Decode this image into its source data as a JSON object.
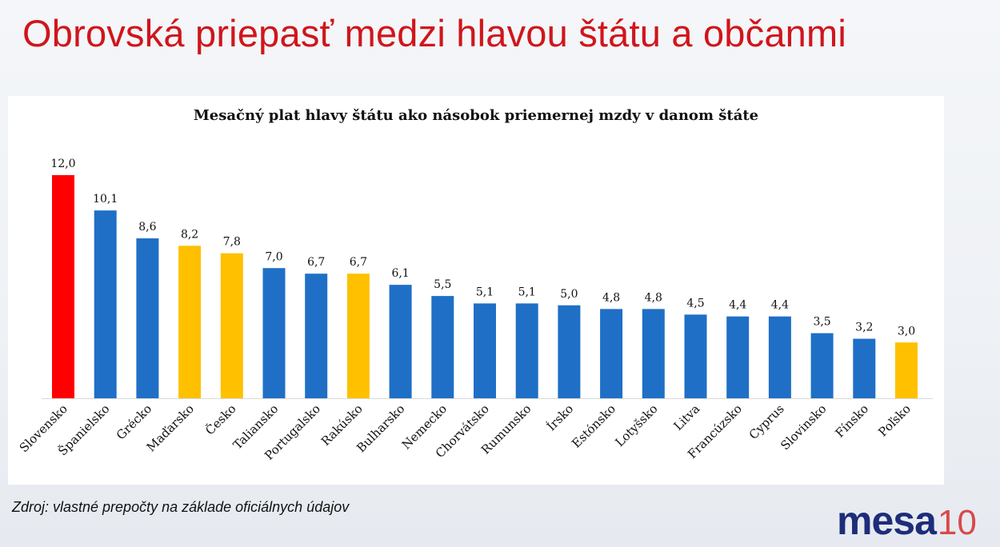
{
  "title": "Obrovská priepasť medzi hlavou štátu a občanmi",
  "source": "Zdroj: vlastné prepočty na základe oficiálnych údajov",
  "logo": {
    "text": "mesa",
    "suffix": "10",
    "color": "#1e2d7a"
  },
  "chart_data": {
    "type": "bar",
    "title": "Mesačný plat hlavy štátu ako násobok priemernej mzdy v danom štáte",
    "categories": [
      "Slovensko",
      "Španielsko",
      "Grécko",
      "Maďarsko",
      "Česko",
      "Taliansko",
      "Portugalsko",
      "Rakúsko",
      "Bulharsko",
      "Nemecko",
      "Chorvátsko",
      "Rumunsko",
      "Írsko",
      "Estónsko",
      "Lotyšsko",
      "Litva",
      "Francúzsko",
      "Cyprus",
      "Slovinsko",
      "Fínsko",
      "Poľsko"
    ],
    "values": [
      12.0,
      10.1,
      8.6,
      8.2,
      7.8,
      7.0,
      6.7,
      6.7,
      6.1,
      5.5,
      5.1,
      5.1,
      5.0,
      4.8,
      4.8,
      4.5,
      4.4,
      4.4,
      3.5,
      3.2,
      3.0
    ],
    "value_labels": [
      "12,0",
      "10,1",
      "8,6",
      "8,2",
      "7,8",
      "7,0",
      "6,7",
      "6,7",
      "6,1",
      "5,5",
      "5,1",
      "5,1",
      "5,0",
      "4,8",
      "4,8",
      "4,5",
      "4,4",
      "4,4",
      "3,5",
      "3,2",
      "3,0"
    ],
    "colors": [
      "#ff0000",
      "#1f6fc6",
      "#1f6fc6",
      "#ffc000",
      "#ffc000",
      "#1f6fc6",
      "#1f6fc6",
      "#ffc000",
      "#1f6fc6",
      "#1f6fc6",
      "#1f6fc6",
      "#1f6fc6",
      "#1f6fc6",
      "#1f6fc6",
      "#1f6fc6",
      "#1f6fc6",
      "#1f6fc6",
      "#1f6fc6",
      "#1f6fc6",
      "#1f6fc6",
      "#ffc000"
    ],
    "ylim": [
      0,
      12
    ],
    "grid": false,
    "legend": "none"
  }
}
